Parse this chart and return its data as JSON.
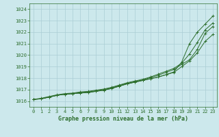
{
  "xlabel": "Graphe pression niveau de la mer (hPa)",
  "bg_color": "#cce8ec",
  "grid_color": "#aacdd4",
  "line_color": "#2d6e2d",
  "ylim": [
    1015.5,
    1024.5
  ],
  "xlim": [
    -0.5,
    23.5
  ],
  "yticks": [
    1016,
    1017,
    1018,
    1019,
    1020,
    1021,
    1022,
    1023,
    1024
  ],
  "xticks": [
    0,
    1,
    2,
    3,
    4,
    5,
    6,
    7,
    8,
    9,
    10,
    11,
    12,
    13,
    14,
    15,
    16,
    17,
    18,
    19,
    20,
    21,
    22,
    23
  ],
  "series": [
    [
      1016.15,
      1016.2,
      1016.35,
      1016.5,
      1016.6,
      1016.65,
      1016.7,
      1016.75,
      1016.85,
      1016.95,
      1017.1,
      1017.3,
      1017.5,
      1017.65,
      1017.8,
      1017.95,
      1018.1,
      1018.3,
      1018.5,
      1019.0,
      1019.5,
      1020.2,
      1021.2,
      1021.8
    ],
    [
      1016.15,
      1016.2,
      1016.35,
      1016.5,
      1016.6,
      1016.65,
      1016.75,
      1016.8,
      1016.9,
      1017.0,
      1017.15,
      1017.35,
      1017.55,
      1017.7,
      1017.85,
      1018.05,
      1018.25,
      1018.5,
      1018.75,
      1019.2,
      1019.6,
      1020.5,
      1021.9,
      1022.5
    ],
    [
      1016.15,
      1016.25,
      1016.4,
      1016.55,
      1016.65,
      1016.7,
      1016.8,
      1016.85,
      1016.95,
      1017.05,
      1017.2,
      1017.4,
      1017.6,
      1017.75,
      1017.9,
      1018.1,
      1018.35,
      1018.6,
      1018.85,
      1019.3,
      1020.1,
      1021.1,
      1022.2,
      1022.8
    ],
    [
      1016.15,
      1016.2,
      1016.35,
      1016.5,
      1016.6,
      1016.65,
      1016.7,
      1016.75,
      1016.85,
      1016.95,
      1017.1,
      1017.3,
      1017.5,
      1017.65,
      1017.8,
      1017.95,
      1018.1,
      1018.3,
      1018.55,
      1019.4,
      1021.0,
      1022.0,
      1022.7,
      1023.4
    ]
  ]
}
